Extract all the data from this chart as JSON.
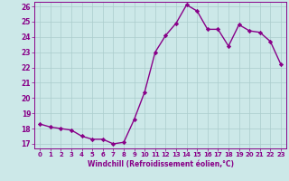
{
  "x": [
    0,
    1,
    2,
    3,
    4,
    5,
    6,
    7,
    8,
    9,
    10,
    11,
    12,
    13,
    14,
    15,
    16,
    17,
    18,
    19,
    20,
    21,
    22,
    23
  ],
  "y": [
    18.3,
    18.1,
    18.0,
    17.9,
    17.5,
    17.3,
    17.3,
    17.0,
    17.1,
    18.6,
    20.4,
    23.0,
    24.1,
    24.9,
    26.1,
    25.7,
    24.5,
    24.5,
    23.4,
    24.8,
    24.4,
    24.3,
    23.7,
    22.2
  ],
  "xlabel": "Windchill (Refroidissement éolien,°C)",
  "ylim": [
    16.7,
    26.3
  ],
  "xlim": [
    -0.5,
    23.5
  ],
  "yticks": [
    17,
    18,
    19,
    20,
    21,
    22,
    23,
    24,
    25,
    26
  ],
  "xticks": [
    0,
    1,
    2,
    3,
    4,
    5,
    6,
    7,
    8,
    9,
    10,
    11,
    12,
    13,
    14,
    15,
    16,
    17,
    18,
    19,
    20,
    21,
    22,
    23
  ],
  "line_color": "#880088",
  "marker": "D",
  "bg_color": "#cce8e8",
  "grid_color": "#aacccc",
  "tick_color": "#880088",
  "label_color": "#880088",
  "marker_size": 2.2,
  "line_width": 1.0
}
